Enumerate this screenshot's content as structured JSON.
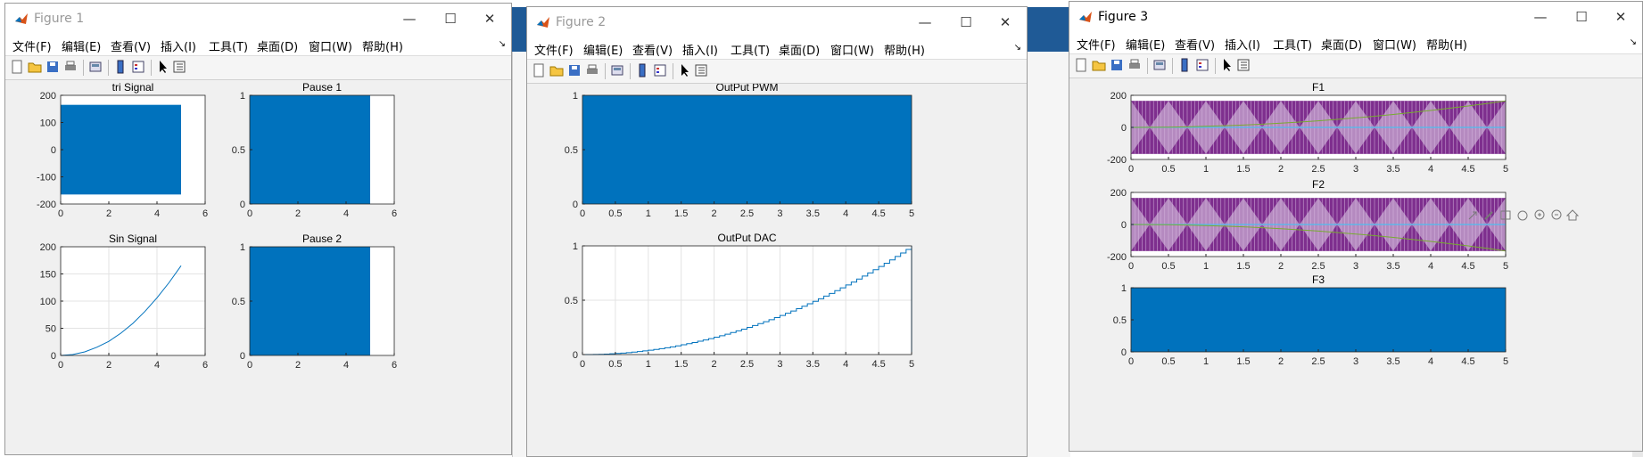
{
  "colors": {
    "plot_blue": "#0072bd",
    "purple": "#7e2f8e",
    "olive": "#77ac30",
    "light_blue": "#4dbeee",
    "desktop_blue": "#1f5a96"
  },
  "windows": [
    {
      "title": "Figure 1",
      "controls": {
        "minimize": "—",
        "maximize": "☐",
        "close": "✕"
      },
      "menus": [
        "文件(F)",
        "编辑(E)",
        "查看(V)",
        "插入(I)",
        "工具(T)",
        "桌面(D)",
        "窗口(W)",
        "帮助(H)"
      ],
      "charts": [
        {
          "type": "area",
          "title": "tri Signal",
          "x": [
            0,
            5
          ],
          "y_band": [
            -165,
            165
          ],
          "xlim": [
            0,
            6
          ],
          "ylim": [
            -200,
            200
          ],
          "xticks": [
            0,
            2,
            4,
            6
          ],
          "yticks": [
            -200,
            -100,
            0,
            100,
            200
          ],
          "grid": false
        },
        {
          "type": "area",
          "title": "Pause 1",
          "x": [
            0,
            5
          ],
          "y_band": [
            0,
            1
          ],
          "xlim": [
            0,
            6
          ],
          "ylim": [
            0,
            1
          ],
          "xticks": [
            0,
            2,
            4,
            6
          ],
          "yticks": [
            0,
            0.5,
            1
          ],
          "grid": false
        },
        {
          "type": "line",
          "title": "Sin Signal",
          "x": [
            0,
            0.5,
            1,
            1.5,
            2,
            2.5,
            3,
            3.5,
            4,
            4.5,
            5
          ],
          "y": [
            0,
            1.6,
            6.6,
            15,
            26,
            41,
            59,
            81,
            106,
            134,
            165
          ],
          "xlim": [
            0,
            6
          ],
          "ylim": [
            0,
            200
          ],
          "xticks": [
            0,
            2,
            4,
            6
          ],
          "yticks": [
            0,
            50,
            100,
            150,
            200
          ],
          "grid": true
        },
        {
          "type": "area",
          "title": "Pause 2",
          "x": [
            0,
            5
          ],
          "y_band": [
            0,
            1
          ],
          "xlim": [
            0,
            6
          ],
          "ylim": [
            0,
            1
          ],
          "xticks": [
            0,
            2,
            4,
            6
          ],
          "yticks": [
            0,
            0.5,
            1
          ],
          "grid": false
        }
      ]
    },
    {
      "title": "Figure 2",
      "controls": {
        "minimize": "—",
        "maximize": "☐",
        "close": "✕"
      },
      "menus": [
        "文件(F)",
        "编辑(E)",
        "查看(V)",
        "插入(I)",
        "工具(T)",
        "桌面(D)",
        "窗口(W)",
        "帮助(H)"
      ],
      "charts": [
        {
          "type": "area",
          "title": "OutPut PWM",
          "x": [
            0,
            5
          ],
          "y_band": [
            0,
            1
          ],
          "xlim": [
            0,
            5
          ],
          "ylim": [
            0,
            1
          ],
          "xticks": [
            0,
            0.5,
            1,
            1.5,
            2,
            2.5,
            3,
            3.5,
            4,
            4.5,
            5
          ],
          "yticks": [
            0,
            0.5,
            1
          ],
          "grid": false
        },
        {
          "type": "step",
          "title": "OutPut DAC",
          "x": [
            0,
            0.5,
            1,
            1.5,
            2,
            2.5,
            3,
            3.5,
            4,
            4.5,
            5
          ],
          "y": [
            0,
            0.01,
            0.04,
            0.09,
            0.16,
            0.25,
            0.36,
            0.49,
            0.64,
            0.81,
            1.0
          ],
          "xlim": [
            0,
            5
          ],
          "ylim": [
            0,
            1
          ],
          "xticks": [
            0,
            0.5,
            1,
            1.5,
            2,
            2.5,
            3,
            3.5,
            4,
            4.5,
            5
          ],
          "yticks": [
            0,
            0.5,
            1
          ],
          "grid": true
        }
      ]
    },
    {
      "title": "Figure 3",
      "controls": {
        "minimize": "—",
        "maximize": "☐",
        "close": "✕"
      },
      "menus": [
        "文件(F)",
        "编辑(E)",
        "查看(V)",
        "插入(I)",
        "工具(T)",
        "桌面(D)",
        "窗口(W)",
        "帮助(H)"
      ],
      "charts": [
        {
          "type": "multi",
          "title": "F1",
          "x": [
            0,
            5
          ],
          "tri_amplitude": 165,
          "tri_periods": 5,
          "trend": [
            0,
            165
          ],
          "xlim": [
            0,
            5
          ],
          "ylim": [
            -200,
            200
          ],
          "xticks": [
            0,
            0.5,
            1,
            1.5,
            2,
            2.5,
            3,
            3.5,
            4,
            4.5,
            5
          ],
          "yticks": [
            -200,
            0,
            200
          ],
          "grid": false
        },
        {
          "type": "multi",
          "title": "F2",
          "x": [
            0,
            5
          ],
          "tri_amplitude": 165,
          "tri_periods": 5,
          "trend": [
            0,
            -165
          ],
          "xlim": [
            0,
            5
          ],
          "ylim": [
            -200,
            200
          ],
          "xticks": [
            0,
            0.5,
            1,
            1.5,
            2,
            2.5,
            3,
            3.5,
            4,
            4.5,
            5
          ],
          "yticks": [
            -200,
            0,
            200
          ],
          "grid": false
        },
        {
          "type": "area",
          "title": "F3",
          "x": [
            0,
            5
          ],
          "y_band": [
            0,
            1
          ],
          "xlim": [
            0,
            5
          ],
          "ylim": [
            0,
            1
          ],
          "xticks": [
            0,
            0.5,
            1,
            1.5,
            2,
            2.5,
            3,
            3.5,
            4,
            4.5,
            5
          ],
          "yticks": [
            0,
            0.5,
            1
          ],
          "grid": false
        }
      ]
    }
  ]
}
